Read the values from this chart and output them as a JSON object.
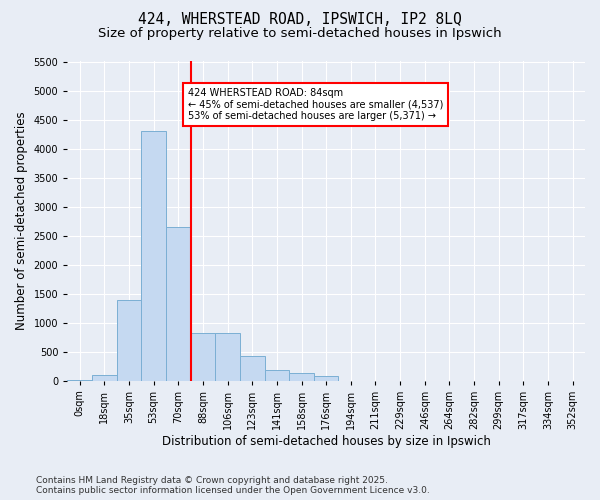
{
  "title1": "424, WHERSTEAD ROAD, IPSWICH, IP2 8LQ",
  "title2": "Size of property relative to semi-detached houses in Ipswich",
  "xlabel": "Distribution of semi-detached houses by size in Ipswich",
  "ylabel": "Number of semi-detached properties",
  "bar_labels": [
    "0sqm",
    "18sqm",
    "35sqm",
    "53sqm",
    "70sqm",
    "88sqm",
    "106sqm",
    "123sqm",
    "141sqm",
    "158sqm",
    "176sqm",
    "194sqm",
    "211sqm",
    "229sqm",
    "246sqm",
    "264sqm",
    "282sqm",
    "299sqm",
    "317sqm",
    "334sqm",
    "352sqm"
  ],
  "bar_values": [
    10,
    100,
    1380,
    4300,
    2650,
    820,
    820,
    430,
    175,
    125,
    80,
    0,
    0,
    0,
    0,
    0,
    0,
    0,
    0,
    0,
    0
  ],
  "bar_color": "#c5d9f1",
  "bar_edge_color": "#7bafd4",
  "ylim": [
    0,
    5500
  ],
  "yticks": [
    0,
    500,
    1000,
    1500,
    2000,
    2500,
    3000,
    3500,
    4000,
    4500,
    5000,
    5500
  ],
  "vline_x": 4.5,
  "annotation_box_text": "424 WHERSTEAD ROAD: 84sqm\n← 45% of semi-detached houses are smaller (4,537)\n53% of semi-detached houses are larger (5,371) →",
  "footnote": "Contains HM Land Registry data © Crown copyright and database right 2025.\nContains public sector information licensed under the Open Government Licence v3.0.",
  "background_color": "#e8edf5",
  "plot_bg_color": "#e8edf5",
  "grid_color": "#ffffff",
  "title_fontsize": 10.5,
  "subtitle_fontsize": 9.5,
  "tick_fontsize": 7,
  "ylabel_fontsize": 8.5,
  "xlabel_fontsize": 8.5,
  "footnote_fontsize": 6.5
}
